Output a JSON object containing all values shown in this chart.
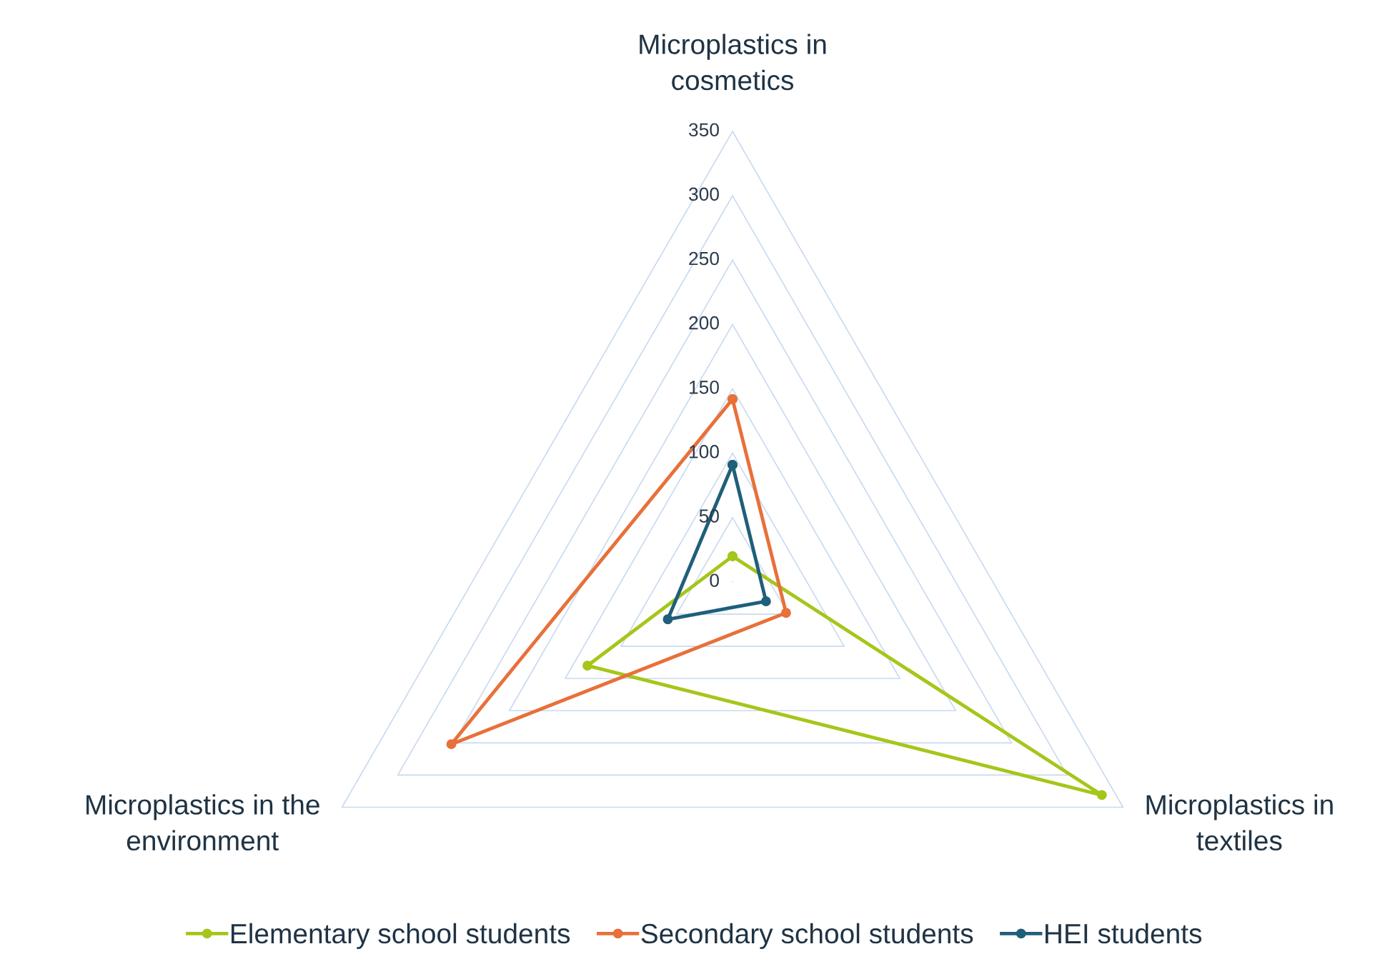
{
  "chart_data": {
    "type": "radar",
    "categories": [
      "Microplastics in\ncosmetics",
      "Microplastics in\ntextiles",
      "Microplastics in the\nenvironment"
    ],
    "series": [
      {
        "name": "Elementary school students",
        "color": "#a5c61a",
        "values": [
          20,
          331,
          130
        ]
      },
      {
        "name": "Secondary school students",
        "color": "#e8703a",
        "values": [
          142,
          48,
          252
        ]
      },
      {
        "name": "HEI students",
        "color": "#1f5f7a",
        "values": [
          91,
          30,
          58
        ]
      }
    ],
    "ylim": [
      0,
      350
    ],
    "yticks": [
      0,
      50,
      100,
      150,
      200,
      250,
      300,
      350
    ],
    "grid": true,
    "legend": "bottom",
    "marker": "circle",
    "line_style": "solid"
  }
}
